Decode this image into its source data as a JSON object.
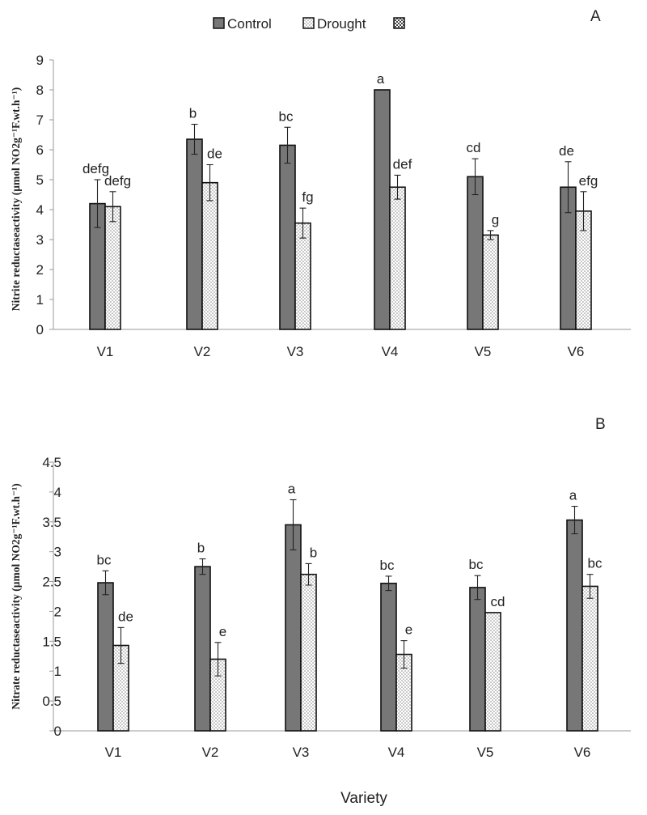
{
  "legend": {
    "control_label": "Control",
    "drought_label": "Drought"
  },
  "x_axis_title": "Variety",
  "colors": {
    "control_fill": "#777777",
    "drought_fill": "#ffffff",
    "drought_dots": "#888888",
    "axis": "#999999",
    "text": "#222222"
  },
  "chart_data": [
    {
      "panel": "A",
      "type": "bar",
      "ylabel": "Nitrite reductaseactivity (µmol NO2g⁻¹F.wt.h⁻¹)",
      "xlabel": "",
      "ylim": [
        0,
        9
      ],
      "yticks": [
        0,
        1,
        2,
        3,
        4,
        5,
        6,
        7,
        8,
        9
      ],
      "categories": [
        "V1",
        "V2",
        "V3",
        "V4",
        "V5",
        "V6"
      ],
      "series": [
        {
          "name": "Control",
          "values": [
            4.2,
            6.35,
            6.15,
            8.0,
            5.1,
            4.75
          ],
          "errors": [
            0.8,
            0.5,
            0.6,
            0.0,
            0.6,
            0.85
          ],
          "letters": [
            "defg",
            "b",
            "bc",
            "a",
            "cd",
            "de"
          ]
        },
        {
          "name": "Drought",
          "values": [
            4.1,
            4.9,
            3.55,
            4.75,
            3.15,
            3.95
          ],
          "errors": [
            0.5,
            0.6,
            0.5,
            0.4,
            0.15,
            0.65
          ],
          "letters": [
            "defg",
            "de",
            "fg",
            "def",
            "g",
            "efg"
          ]
        }
      ]
    },
    {
      "panel": "B",
      "type": "bar",
      "ylabel": "Nitrate reductaseactivity (µmol NO2g⁻¹F.wt.h⁻¹)",
      "xlabel": "Variety",
      "ylim": [
        0,
        4.5
      ],
      "yticks": [
        "0",
        "0.5",
        "1",
        "1.5",
        "2",
        "2.5",
        "3",
        "3.5",
        "4",
        "4.5"
      ],
      "categories": [
        "V1",
        "V2",
        "V3",
        "V4",
        "V5",
        "V6"
      ],
      "series": [
        {
          "name": "Control",
          "values": [
            2.48,
            2.75,
            3.45,
            2.47,
            2.4,
            3.53
          ],
          "errors": [
            0.2,
            0.13,
            0.42,
            0.12,
            0.2,
            0.23
          ],
          "letters": [
            "bc",
            "b",
            "a",
            "bc",
            "bc",
            "a"
          ]
        },
        {
          "name": "Drought",
          "values": [
            1.43,
            1.2,
            2.62,
            1.28,
            1.98,
            2.42
          ],
          "errors": [
            0.3,
            0.28,
            0.18,
            0.23,
            0.0,
            0.2
          ],
          "letters": [
            "de",
            "e",
            "b",
            "e",
            "cd",
            "bc"
          ]
        }
      ]
    }
  ]
}
